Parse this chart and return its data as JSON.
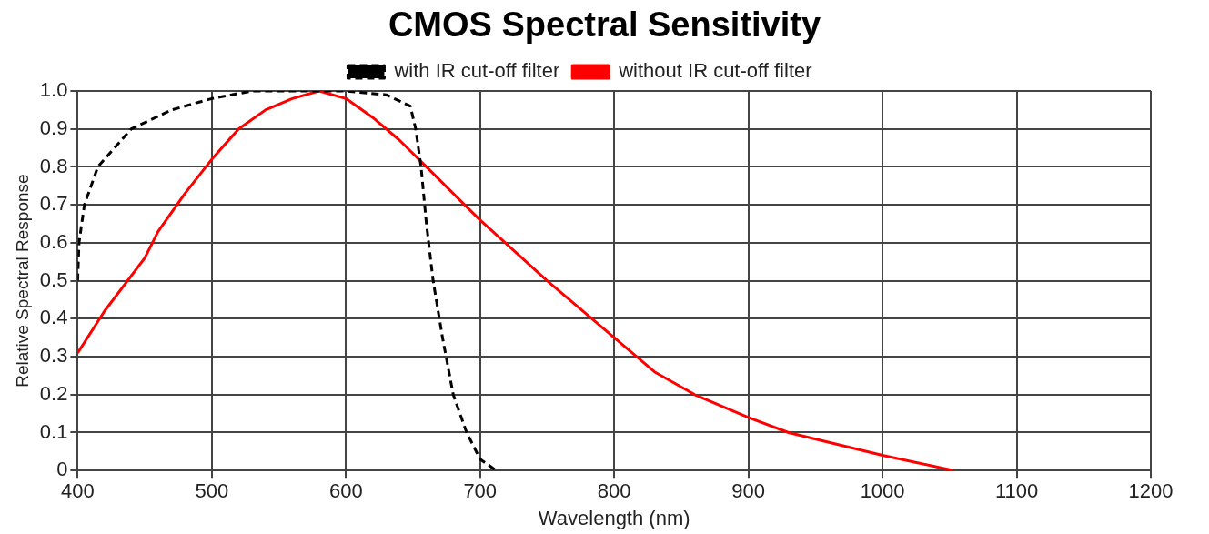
{
  "chart_data": {
    "type": "line",
    "title": "CMOS Spectral Sensitivity",
    "xlabel": "Wavelength (nm)",
    "ylabel": "Relative Spectral Response",
    "xlim": [
      400,
      1200
    ],
    "xticks": [
      400,
      500,
      600,
      700,
      800,
      900,
      1000,
      1100,
      1200
    ],
    "ylim": [
      0,
      1
    ],
    "yticks": [
      {
        "value": 0,
        "label": "0"
      },
      0.1,
      0.2,
      0.3,
      0.4,
      0.5,
      0.6,
      0.7,
      0.8,
      0.9,
      {
        "value": 1,
        "label": "1.0"
      }
    ],
    "grid": true,
    "legend": "top",
    "marker": "none",
    "series": [
      {
        "name": "with IR cut-off filter",
        "color": "#000000",
        "line_style": "dashed",
        "x": [
          400,
          401,
          405,
          415,
          440,
          470,
          500,
          530,
          600,
          630,
          648,
          652,
          656,
          660,
          665,
          672,
          680,
          690,
          700,
          712
        ],
        "values": [
          0.5,
          0.6,
          0.7,
          0.8,
          0.9,
          0.95,
          0.98,
          1.0,
          1.0,
          0.99,
          0.96,
          0.9,
          0.8,
          0.65,
          0.5,
          0.35,
          0.2,
          0.1,
          0.03,
          0
        ]
      },
      {
        "name": "without IR cut-off filter",
        "color": "#ff0000",
        "line_style": "solid",
        "x": [
          400,
          420,
          450,
          460,
          480,
          500,
          520,
          540,
          560,
          580,
          600,
          620,
          640,
          660,
          700,
          750,
          800,
          830,
          860,
          900,
          930,
          1000,
          1053
        ],
        "values": [
          0.31,
          0.42,
          0.56,
          0.63,
          0.73,
          0.82,
          0.9,
          0.95,
          0.98,
          1.0,
          0.98,
          0.93,
          0.87,
          0.8,
          0.66,
          0.5,
          0.35,
          0.26,
          0.2,
          0.14,
          0.1,
          0.04,
          0
        ]
      }
    ]
  }
}
